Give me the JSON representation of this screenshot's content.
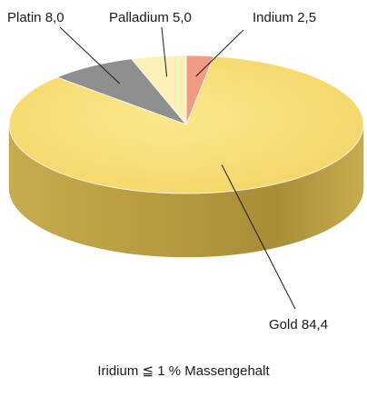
{
  "chart_data": {
    "type": "pie",
    "title": "",
    "slices": [
      {
        "name": "Gold",
        "value": 84.4,
        "label": "Gold 84,4",
        "color": "#f7dc72"
      },
      {
        "name": "Platin",
        "value": 8.0,
        "label": "Platin 8,0",
        "color": "#8f8f8f"
      },
      {
        "name": "Palladium",
        "value": 5.0,
        "label": "Palladium 5,0",
        "color": "#fbf0b8"
      },
      {
        "name": "Indium",
        "value": 2.5,
        "label": "Indium 2,5",
        "color": "#f29b83"
      }
    ],
    "footnote": "Iridium ≦ 1 % Massengehalt",
    "style": "3d"
  }
}
